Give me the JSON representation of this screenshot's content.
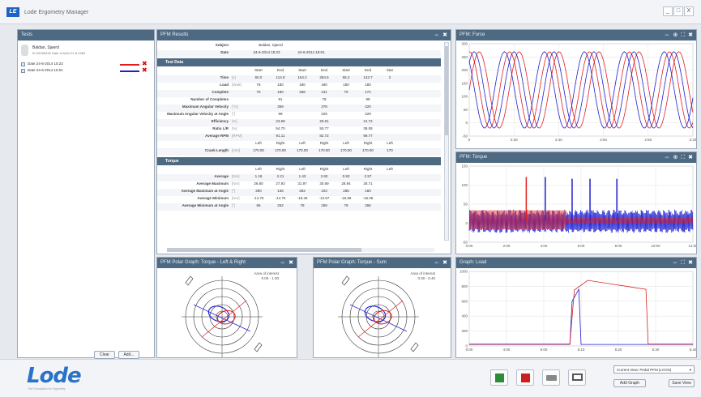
{
  "app": {
    "title": "Lode Ergometry Manager",
    "logo": "LE"
  },
  "window": {
    "minimize": "_",
    "maximize": "□",
    "close": "X"
  },
  "tests_panel": {
    "title": "Tests",
    "subject_name": "Baldan, Sjaerd",
    "subject_meta": "ID 98765432  Date of birth 21-8-1983",
    "tests": [
      {
        "label": "Date   24-6-2014 15:23",
        "color": "#e02020"
      },
      {
        "label": "Date   24-6-2014 16:01",
        "color": "#2020d0"
      }
    ],
    "clear_label": "Clear",
    "add_label": "Add..."
  },
  "results_panel": {
    "title": "PFM Results",
    "subject_label": "Subject",
    "subject_value": "Baldan, Sjaerd",
    "date_label": "Date",
    "dates": [
      "24-6-2014 15:23",
      "24-6-2014 16:01"
    ],
    "test_data_section": "Test Data",
    "torque_section": "Torque",
    "col_headers": [
      "Start",
      "End",
      "Start",
      "End",
      "Start",
      "End",
      "Star"
    ],
    "test_rows": [
      {
        "label": "Time",
        "unit": "[s]",
        "values": [
          "60.0",
          "114.8",
          "164.2",
          "284.6",
          "65.2",
          "143.7",
          "2"
        ]
      },
      {
        "label": "Load",
        "unit": "[Watt]",
        "values": [
          "75",
          "180",
          "180",
          "180",
          "180",
          "180",
          ""
        ]
      },
      {
        "label": "Complete",
        "unit": "",
        "values": [
          "70",
          "180",
          "268",
          "441",
          "70",
          "174",
          ""
        ]
      },
      {
        "label": "Number of Completes",
        "unit": "",
        "values": [
          "",
          "91",
          "",
          "78",
          "",
          "98",
          ""
        ]
      },
      {
        "label": "Maximum Angular Velocity",
        "unit": "[°/s]",
        "values": [
          "",
          "369",
          "",
          "378",
          "",
          "420",
          ""
        ]
      },
      {
        "label": "Maximum Angular Velocity at Angle",
        "unit": "[°]",
        "values": [
          "",
          "99",
          "",
          "229",
          "",
          "229",
          ""
        ]
      },
      {
        "label": "Efficiency",
        "unit": "[%]",
        "values": [
          "",
          "23.69",
          "",
          "25.61",
          "",
          "21.72",
          ""
        ]
      },
      {
        "label": "Ratio L/R",
        "unit": "[%]",
        "values": [
          "",
          "54.70",
          "",
          "50.77",
          "",
          "38.08",
          ""
        ]
      },
      {
        "label": "Average RPM",
        "unit": "[RPM]",
        "values": [
          "",
          "91.11",
          "",
          "82.72",
          "",
          "99.77",
          ""
        ]
      }
    ],
    "side_headers": [
      "Left",
      "Right",
      "Left",
      "Right",
      "Left",
      "Right",
      "Left"
    ],
    "crank_row": {
      "label": "Crank Length",
      "unit": "[mm]",
      "values": [
        "170.00",
        "170.00",
        "170.00",
        "170.00",
        "170.00",
        "170.00",
        "170"
      ]
    },
    "torque_rows": [
      {
        "label": "Average",
        "unit": "[Nm]",
        "values": [
          "1.18",
          "2.21",
          "1.43",
          "2.60",
          "0.93",
          "2.57",
          ""
        ]
      },
      {
        "label": "Average Maximum",
        "unit": "[Nm]",
        "values": [
          "26.80",
          "27.93",
          "31.97",
          "30.69",
          "28.94",
          "28.71",
          ""
        ]
      },
      {
        "label": "Average Maximum at Angle",
        "unit": "[°]",
        "values": [
          "280",
          "135",
          "282",
          "103",
          "285",
          "160",
          ""
        ]
      },
      {
        "label": "Average Minimum",
        "unit": "[Nm]",
        "values": [
          "-14.75",
          "-14.75",
          "-18.46",
          "-13.57",
          "-16.68",
          "-16.06",
          ""
        ]
      },
      {
        "label": "Average Minimum at Angle",
        "unit": "[°]",
        "values": [
          "66",
          "262",
          "78",
          "259",
          "78",
          "266",
          ""
        ]
      }
    ]
  },
  "force_panel": {
    "title": "PFM: Force"
  },
  "torque_panel": {
    "title": "PFM: Torque"
  },
  "load_panel": {
    "title": "Graph: Load"
  },
  "polar_lr_panel": {
    "title": "PFM Polar Graph: Torque - Left & Right",
    "aoi_title": "Area of interest",
    "aoi_value": "0.00 - 1.00"
  },
  "polar_sum_panel": {
    "title": "PFM Polar Graph: Torque - Sum",
    "aoi_title": "Area of interest",
    "aoi_value": "0.00 - 0.40"
  },
  "footer": {
    "logo": "Lode",
    "tagline": "The Foundation for Ergometry",
    "view_select": "Current View: Pedal PFM (LCOS)",
    "graph_btn": "Add Graph",
    "save_view": "Save View"
  },
  "chart_data": [
    {
      "type": "line",
      "id": "force",
      "x_ticks": [
        "0",
        "2:30",
        "2:40",
        "2:50",
        "2:60",
        "2:20"
      ],
      "y_ticks": [
        "300",
        "250",
        "200",
        "150",
        "100",
        "50",
        "0",
        "-50"
      ],
      "ylim": [
        -50,
        300
      ],
      "series": [
        {
          "color": "#e02020"
        },
        {
          "color": "#2020d0"
        }
      ]
    },
    {
      "type": "line",
      "id": "torque",
      "x_ticks": [
        "0:00",
        "2:00",
        "4:00",
        "6:00",
        "8:00",
        "10:00",
        "12:00"
      ],
      "y_ticks": [
        "150",
        "100",
        "50",
        "0",
        "-50"
      ],
      "ylim": [
        -60,
        150
      ],
      "series": [
        {
          "color": "#e02020"
        },
        {
          "color": "#2020d0"
        }
      ]
    },
    {
      "type": "line",
      "id": "load",
      "x_ticks": [
        "0:00",
        "4:00",
        "5:00",
        "5:10",
        "5:20",
        "5:30",
        "5:40"
      ],
      "y_ticks": [
        "1000",
        "800",
        "600",
        "400",
        "200",
        "0"
      ],
      "ylim": [
        0,
        1000
      ],
      "series": [
        {
          "color": "#e02020"
        },
        {
          "color": "#2020d0"
        }
      ]
    }
  ]
}
